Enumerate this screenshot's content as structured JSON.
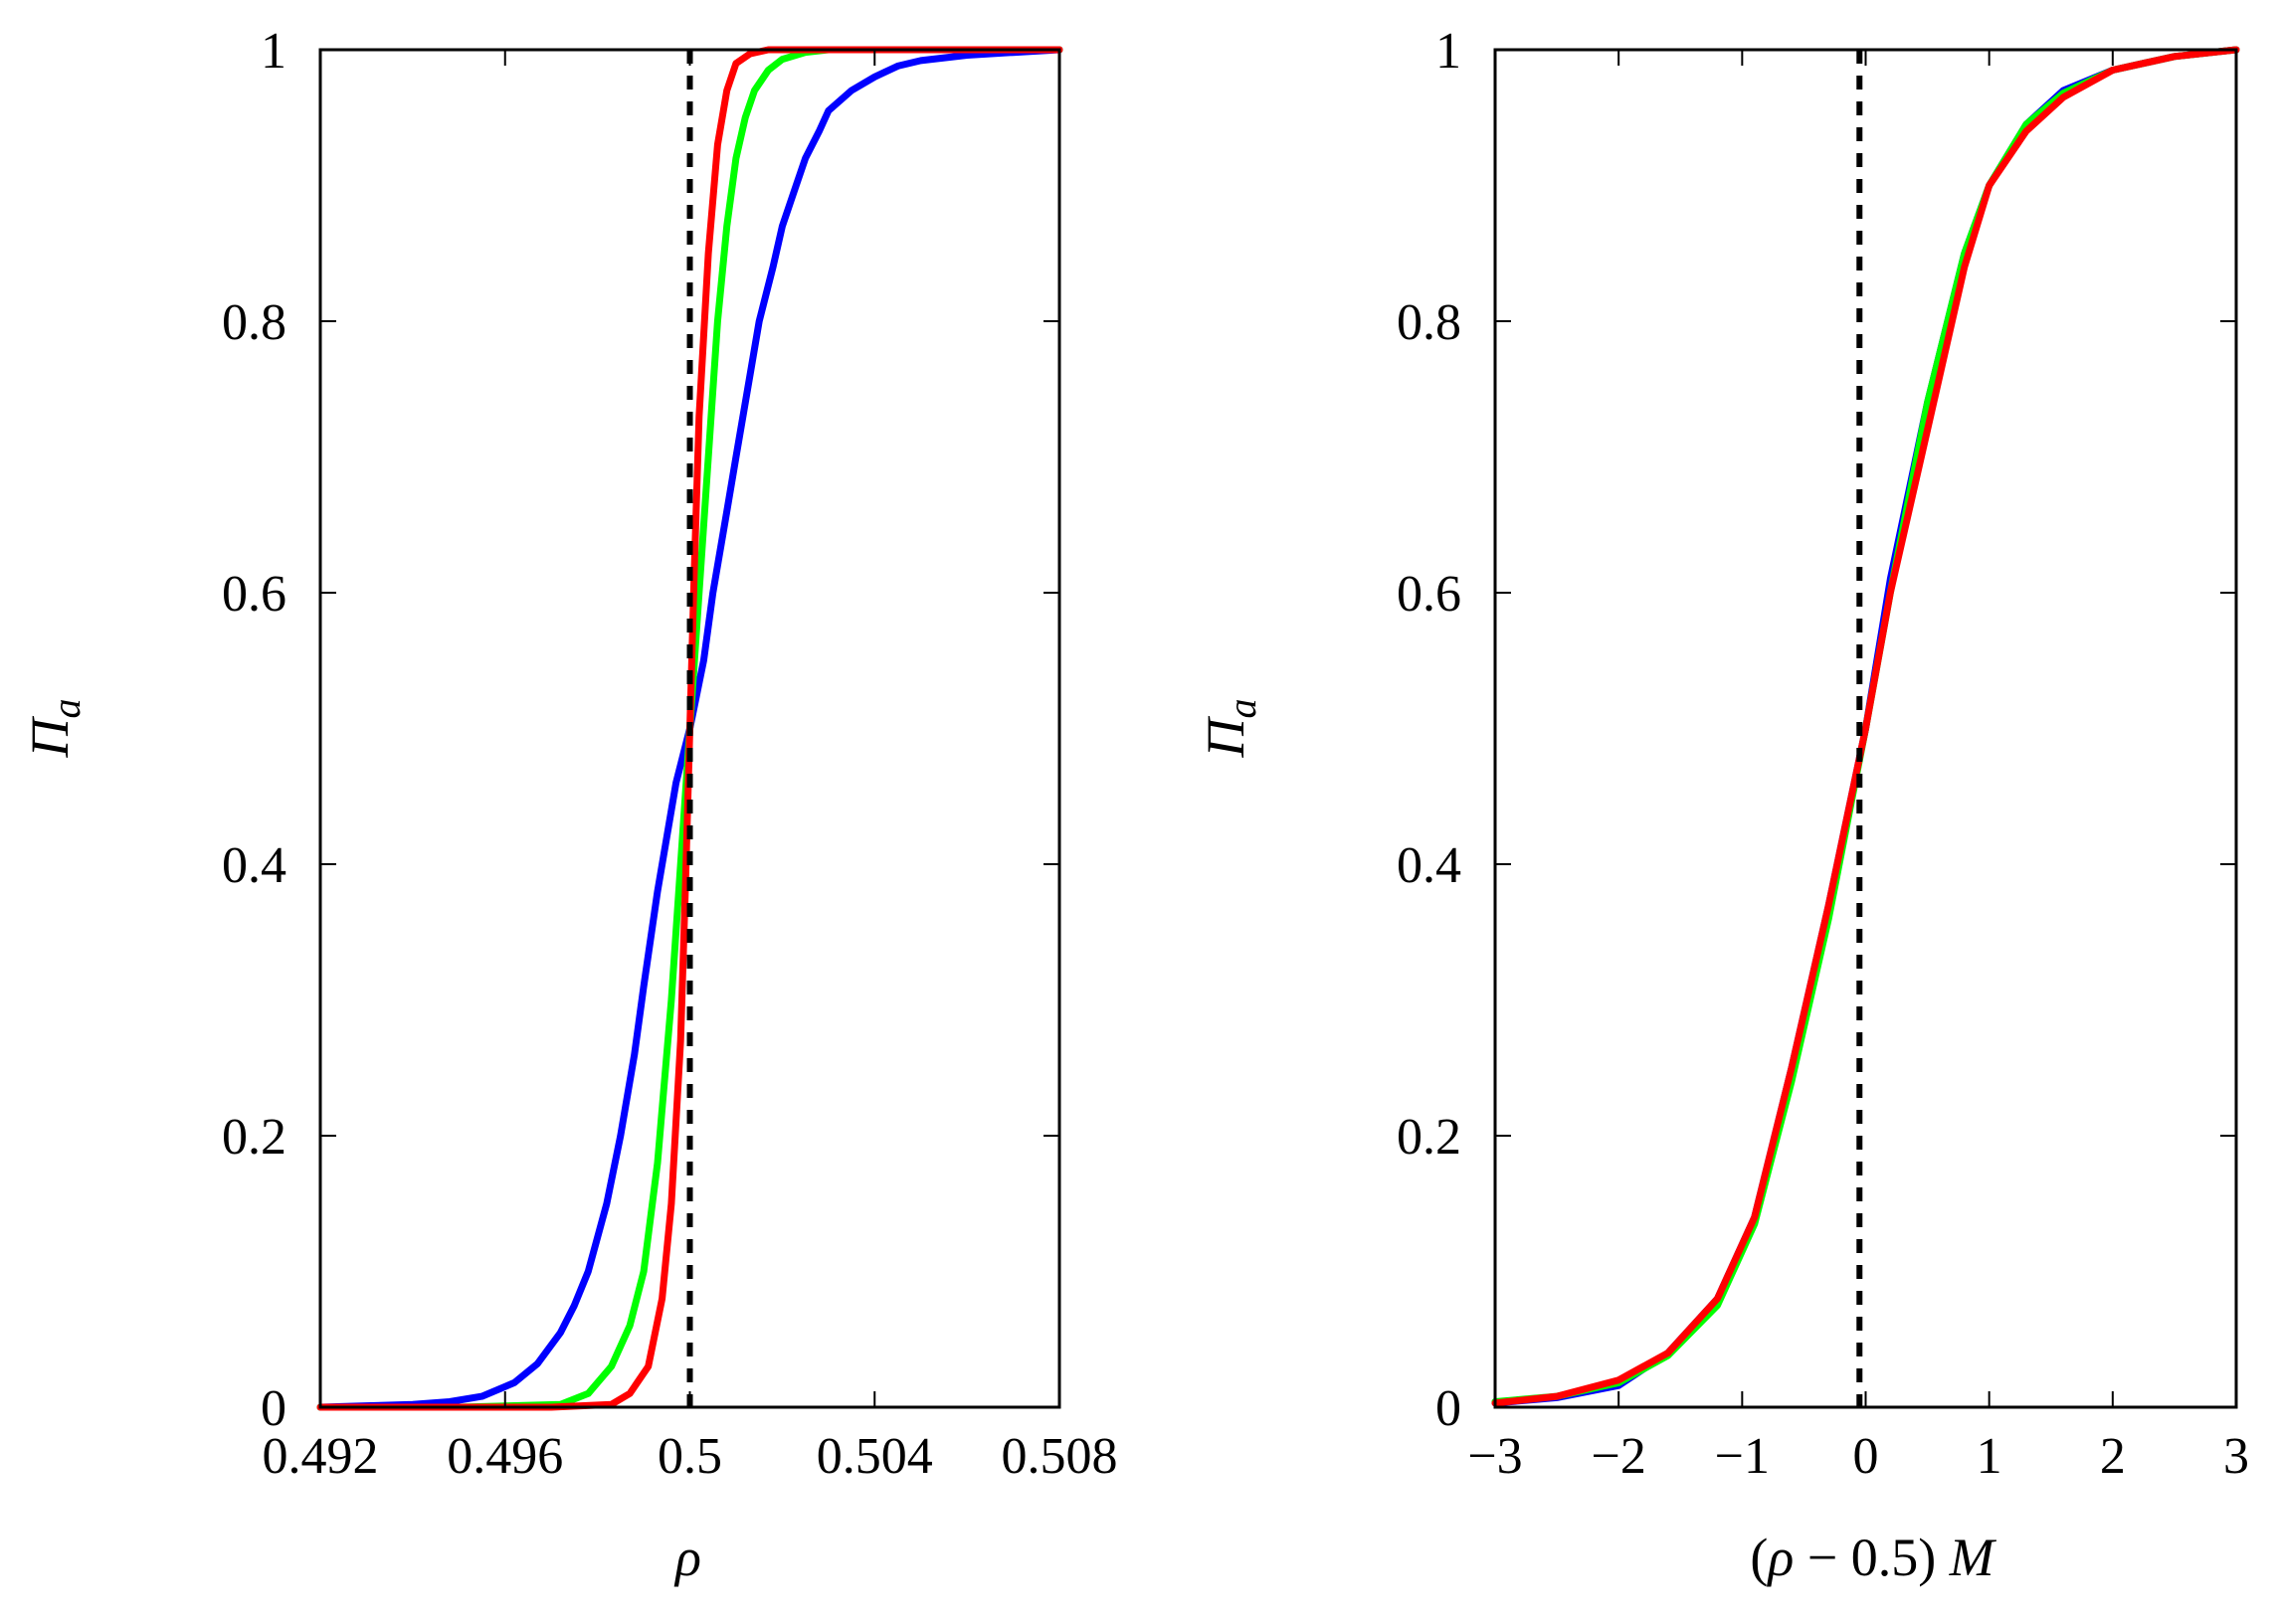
{
  "chart_data": [
    {
      "type": "line",
      "title": "",
      "xlabel": "ρ",
      "ylabel_main": "Π",
      "ylabel_sub": "a",
      "xlim": [
        0.492,
        0.508
      ],
      "ylim": [
        0,
        1
      ],
      "xticks": [
        0.492,
        0.496,
        0.5,
        0.504,
        0.508
      ],
      "xtick_labels": [
        "0.492",
        "0.496",
        "0.5",
        "0.504",
        "0.508"
      ],
      "yticks": [
        0,
        0.2,
        0.4,
        0.6,
        0.8,
        1
      ],
      "ytick_labels": [
        "0",
        "0.2",
        "0.4",
        "0.6",
        "0.8",
        "1"
      ],
      "reference_line": {
        "x": 0.5,
        "style": "dashed",
        "color": "#000000"
      },
      "series": [
        {
          "name": "blue",
          "color": "#0000ff",
          "x": [
            0.492,
            0.493,
            0.494,
            0.4948,
            0.4955,
            0.4962,
            0.4967,
            0.4972,
            0.4975,
            0.4978,
            0.498,
            0.4982,
            0.4985,
            0.4988,
            0.499,
            0.4993,
            0.4995,
            0.4997,
            0.5,
            0.5003,
            0.5005,
            0.5008,
            0.501,
            0.5013,
            0.5015,
            0.5018,
            0.502,
            0.5023,
            0.5025,
            0.5028,
            0.503,
            0.5035,
            0.504,
            0.5045,
            0.505,
            0.506,
            0.507,
            0.508
          ],
          "y": [
            0.0,
            0.001,
            0.002,
            0.004,
            0.008,
            0.018,
            0.032,
            0.055,
            0.075,
            0.1,
            0.125,
            0.15,
            0.2,
            0.26,
            0.31,
            0.38,
            0.42,
            0.46,
            0.5,
            0.55,
            0.6,
            0.66,
            0.7,
            0.76,
            0.8,
            0.84,
            0.87,
            0.9,
            0.92,
            0.94,
            0.955,
            0.97,
            0.98,
            0.988,
            0.992,
            0.996,
            0.998,
            1.0
          ]
        },
        {
          "name": "green",
          "color": "#00ff00",
          "x": [
            0.492,
            0.495,
            0.4972,
            0.4978,
            0.4983,
            0.4987,
            0.499,
            0.4993,
            0.4996,
            0.4998,
            0.5,
            0.5002,
            0.5004,
            0.5006,
            0.5008,
            0.501,
            0.5012,
            0.5014,
            0.5017,
            0.502,
            0.5025,
            0.503,
            0.504,
            0.508
          ],
          "y": [
            0.0,
            0.0,
            0.002,
            0.01,
            0.03,
            0.06,
            0.1,
            0.18,
            0.3,
            0.4,
            0.5,
            0.6,
            0.7,
            0.8,
            0.87,
            0.92,
            0.95,
            0.97,
            0.985,
            0.993,
            0.998,
            1.0,
            1.0,
            1.0
          ]
        },
        {
          "name": "red",
          "color": "#ff0000",
          "x": [
            0.492,
            0.497,
            0.4983,
            0.4987,
            0.4991,
            0.4994,
            0.4996,
            0.4998,
            0.4999,
            0.5,
            0.5001,
            0.5002,
            0.5004,
            0.5006,
            0.5008,
            0.501,
            0.5013,
            0.5017,
            0.502,
            0.508
          ],
          "y": [
            0.0,
            0.0,
            0.002,
            0.01,
            0.03,
            0.08,
            0.15,
            0.27,
            0.38,
            0.5,
            0.62,
            0.73,
            0.85,
            0.93,
            0.97,
            0.99,
            0.997,
            1.0,
            1.0,
            1.0
          ]
        }
      ]
    },
    {
      "type": "line",
      "title": "",
      "xlabel_upright_left": "(",
      "xlabel_rho": "ρ",
      "xlabel_upright_mid": " − 0.5) ",
      "xlabel_M": "M",
      "ylabel_main": "Π",
      "ylabel_sub": "a",
      "xlim": [
        -3,
        3
      ],
      "ylim": [
        0,
        1
      ],
      "xticks": [
        -3,
        -2,
        -1,
        0,
        1,
        2,
        3
      ],
      "xtick_labels": [
        "−3",
        "−2",
        "−1",
        "0",
        "1",
        "2",
        "3"
      ],
      "yticks": [
        0,
        0.2,
        0.4,
        0.6,
        0.8,
        1
      ],
      "ytick_labels": [
        "0",
        "0.2",
        "0.4",
        "0.6",
        "0.8",
        "1"
      ],
      "reference_line": {
        "x": -0.05,
        "style": "dashed",
        "color": "#000000"
      },
      "series": [
        {
          "name": "blue",
          "color": "#0000ff",
          "x": [
            -3,
            -2.5,
            -2,
            -1.6,
            -1.2,
            -0.9,
            -0.6,
            -0.3,
            0,
            0.2,
            0.5,
            0.8,
            1.0,
            1.3,
            1.6,
            2.0,
            2.5,
            3
          ],
          "y": [
            0.003,
            0.007,
            0.016,
            0.04,
            0.08,
            0.14,
            0.25,
            0.37,
            0.5,
            0.61,
            0.74,
            0.85,
            0.9,
            0.945,
            0.97,
            0.985,
            0.995,
            1.0
          ]
        },
        {
          "name": "green",
          "color": "#00ff00",
          "x": [
            -3,
            -2.5,
            -2,
            -1.6,
            -1.2,
            -0.9,
            -0.6,
            -0.3,
            0,
            0.2,
            0.5,
            0.8,
            1.0,
            1.3,
            1.6,
            2.0,
            2.5,
            3
          ],
          "y": [
            0.004,
            0.008,
            0.018,
            0.038,
            0.075,
            0.135,
            0.24,
            0.36,
            0.5,
            0.6,
            0.74,
            0.85,
            0.9,
            0.945,
            0.968,
            0.985,
            0.995,
            1.0
          ]
        },
        {
          "name": "red",
          "color": "#ff0000",
          "x": [
            -3,
            -2.5,
            -2,
            -1.6,
            -1.2,
            -0.9,
            -0.6,
            -0.3,
            0,
            0.2,
            0.5,
            0.8,
            1.0,
            1.3,
            1.6,
            2.0,
            2.5,
            3
          ],
          "y": [
            0.003,
            0.008,
            0.02,
            0.04,
            0.08,
            0.14,
            0.25,
            0.37,
            0.5,
            0.6,
            0.72,
            0.84,
            0.9,
            0.94,
            0.965,
            0.985,
            0.995,
            1.0
          ]
        }
      ]
    }
  ]
}
